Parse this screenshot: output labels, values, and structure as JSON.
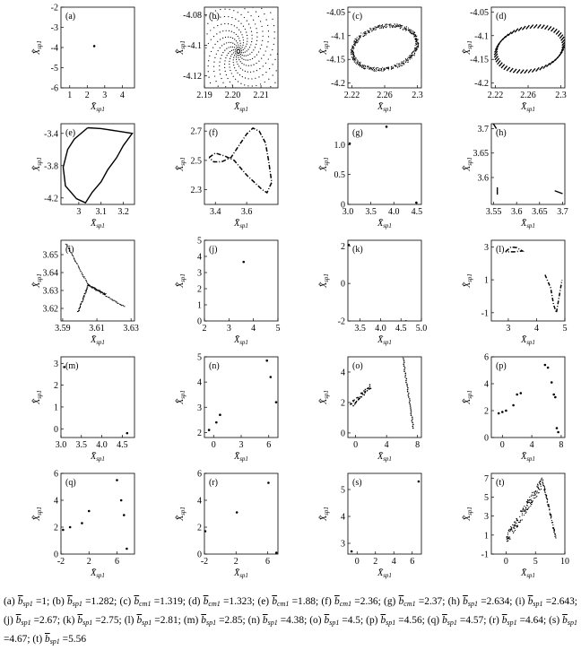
{
  "figure": {
    "x_axis_label": "X̄",
    "x_axis_subscript": "sp1",
    "y_axis_label": "X̄̇",
    "y_axis_subscript": "sp1"
  },
  "chart_data": [
    {
      "id": "a",
      "type": "scatter",
      "label": "(a)",
      "xlim": [
        0.5,
        4.7
      ],
      "ylim": [
        -6,
        -2
      ],
      "xticks": [
        1,
        2,
        3,
        4
      ],
      "yticks": [
        -6,
        -5,
        -4,
        -3,
        -2
      ],
      "shape": "points",
      "points": [
        [
          2.4,
          -3.93
        ]
      ]
    },
    {
      "id": "b",
      "type": "scatter",
      "label": "(b)",
      "xlim": [
        2.19,
        2.216
      ],
      "ylim": [
        -4.128,
        -4.075
      ],
      "xticks": [
        2.19,
        2.2,
        2.21
      ],
      "xtick_labels": [
        "2.19",
        "2.20",
        "2.21"
      ],
      "yticks": [
        -4.12,
        -4.1,
        -4.08
      ],
      "shape": "spiral",
      "center": [
        2.202,
        -4.104
      ]
    },
    {
      "id": "c",
      "type": "scatter",
      "label": "(c)",
      "xlim": [
        2.215,
        2.305
      ],
      "ylim": [
        -4.21,
        -4.04
      ],
      "xticks": [
        2.22,
        2.26,
        2.3
      ],
      "yticks": [
        -4.2,
        -4.15,
        -4.1,
        -4.05
      ],
      "shape": "dense-loop",
      "center": [
        2.26,
        -4.125
      ],
      "radius": [
        0.04,
        0.07
      ],
      "tilt": 0.4
    },
    {
      "id": "d",
      "type": "scatter",
      "label": "(d)",
      "xlim": [
        2.215,
        2.305
      ],
      "ylim": [
        -4.21,
        -4.04
      ],
      "xticks": [
        2.22,
        2.26,
        2.3
      ],
      "yticks": [
        -4.2,
        -4.15,
        -4.1,
        -4.05
      ],
      "shape": "loop",
      "center": [
        2.262,
        -4.128
      ],
      "radius": [
        0.042,
        0.072
      ],
      "tilt": 0.4
    },
    {
      "id": "e",
      "type": "line",
      "label": "(e)",
      "xlim": [
        2.92,
        3.25
      ],
      "ylim": [
        -4.28,
        -3.28
      ],
      "xticks": [
        3,
        3.1,
        3.2
      ],
      "yticks": [
        -4.2,
        -3.8,
        -3.4
      ],
      "shape": "path",
      "points": [
        [
          3.04,
          -3.33
        ],
        [
          3.1,
          -3.34
        ],
        [
          3.17,
          -3.37
        ],
        [
          3.24,
          -3.4
        ],
        [
          3.2,
          -3.55
        ],
        [
          3.17,
          -3.7
        ],
        [
          3.13,
          -3.85
        ],
        [
          3.1,
          -4
        ],
        [
          3.06,
          -4.13
        ],
        [
          3.03,
          -4.26
        ],
        [
          2.99,
          -4.21
        ],
        [
          2.94,
          -4.05
        ],
        [
          2.93,
          -3.82
        ],
        [
          2.95,
          -3.6
        ],
        [
          2.98,
          -3.47
        ],
        [
          3.04,
          -3.33
        ]
      ]
    },
    {
      "id": "f",
      "type": "line",
      "label": "(f)",
      "xlim": [
        3.33,
        3.8
      ],
      "ylim": [
        2.2,
        2.75
      ],
      "xticks": [
        3.4,
        3.6
      ],
      "yticks": [
        2.3,
        2.5,
        2.7
      ],
      "shape": "dashed-path",
      "points": [
        [
          3.36,
          2.52
        ],
        [
          3.4,
          2.55
        ],
        [
          3.46,
          2.53
        ],
        [
          3.52,
          2.5
        ],
        [
          3.56,
          2.45
        ],
        [
          3.6,
          2.4
        ],
        [
          3.65,
          2.35
        ],
        [
          3.7,
          2.3
        ],
        [
          3.73,
          2.28
        ],
        [
          3.76,
          2.35
        ],
        [
          3.74,
          2.5
        ],
        [
          3.72,
          2.62
        ],
        [
          3.68,
          2.7
        ],
        [
          3.64,
          2.72
        ],
        [
          3.6,
          2.68
        ],
        [
          3.55,
          2.6
        ],
        [
          3.5,
          2.52
        ],
        [
          3.44,
          2.49
        ],
        [
          3.39,
          2.49
        ],
        [
          3.36,
          2.52
        ]
      ]
    },
    {
      "id": "g",
      "type": "scatter",
      "label": "(g)",
      "xlim": [
        3,
        4.6
      ],
      "ylim": [
        0,
        1.35
      ],
      "xticks": [
        3,
        3.5,
        4,
        4.5
      ],
      "xtick_labels": [
        "3.0",
        "3.5",
        "4.0",
        "4.5"
      ],
      "yticks": [
        0,
        0.5,
        1
      ],
      "ytick_labels": [
        "0",
        "0.5",
        "1.0"
      ],
      "shape": "points",
      "points": [
        [
          3.84,
          1.3
        ],
        [
          3.04,
          1.02
        ],
        [
          4.49,
          0.03
        ]
      ]
    },
    {
      "id": "h",
      "type": "line",
      "label": "(h)",
      "xlim": [
        3.545,
        3.705
      ],
      "ylim": [
        3.545,
        3.71
      ],
      "xticks": [
        3.55,
        3.6,
        3.65,
        3.7
      ],
      "yticks": [
        3.6,
        3.65,
        3.7
      ],
      "shape": "segments",
      "segments": [
        [
          [
            3.548,
            3.712
          ],
          [
            3.556,
            3.7
          ]
        ],
        [
          [
            3.558,
            3.58
          ],
          [
            3.558,
            3.565
          ]
        ],
        [
          [
            3.683,
            3.573
          ],
          [
            3.7,
            3.567
          ]
        ]
      ]
    },
    {
      "id": "i",
      "type": "scatter",
      "label": "(i)",
      "xlim": [
        3.589,
        3.632
      ],
      "ylim": [
        3.613,
        3.658
      ],
      "xticks": [
        3.59,
        3.61,
        3.63
      ],
      "yticks": [
        3.62,
        3.63,
        3.64,
        3.65
      ],
      "shape": "junction",
      "center": [
        3.605,
        3.633
      ],
      "arms": [
        [
          3.592,
          3.656
        ],
        [
          3.599,
          3.618
        ],
        [
          3.626,
          3.621
        ],
        [
          3.615,
          3.628
        ]
      ]
    },
    {
      "id": "j",
      "type": "scatter",
      "label": "(j)",
      "xlim": [
        2,
        5
      ],
      "ylim": [
        0,
        5
      ],
      "xticks": [
        2,
        3,
        4,
        5
      ],
      "yticks": [
        0,
        1,
        2,
        3,
        4,
        5
      ],
      "shape": "points",
      "points": [
        [
          3.6,
          3.66
        ]
      ]
    },
    {
      "id": "k",
      "type": "scatter",
      "label": "(k)",
      "xlim": [
        3.2,
        5
      ],
      "ylim": [
        -2,
        2.3
      ],
      "xticks": [
        3.5,
        4,
        4.5,
        5
      ],
      "xtick_labels": [
        "3.5",
        "4.0",
        "4.5",
        "5.0"
      ],
      "yticks": [
        -2,
        0,
        2
      ],
      "shape": "points",
      "points": [
        [
          3.22,
          2.05
        ],
        [
          4.62,
          -2.02
        ]
      ]
    },
    {
      "id": "l",
      "type": "scatter",
      "label": "(l)",
      "xlim": [
        2.4,
        5
      ],
      "ylim": [
        -1.5,
        3.4
      ],
      "xticks": [
        3,
        4,
        5
      ],
      "yticks": [
        -1,
        1,
        3
      ],
      "shape": "dashed-path",
      "points": [
        [
          2.9,
          2.7
        ],
        [
          3.1,
          3
        ],
        [
          3.3,
          2.95
        ],
        [
          3.5,
          2.75
        ],
        [
          3.2,
          2.7
        ],
        [
          2.9,
          2.7
        ]
      ],
      "points2": [
        [
          4.3,
          1.3
        ],
        [
          4.5,
          0.5
        ],
        [
          4.6,
          -0.5
        ],
        [
          4.7,
          -1
        ],
        [
          4.8,
          0
        ],
        [
          4.9,
          1
        ]
      ]
    },
    {
      "id": "m",
      "type": "scatter",
      "label": "(m)",
      "xlim": [
        3,
        4.8
      ],
      "ylim": [
        -0.4,
        3.3
      ],
      "xticks": [
        3,
        3.5,
        4,
        4.5
      ],
      "xtick_labels": [
        "3.0",
        "3.5",
        "4.0",
        "4.5"
      ],
      "yticks": [
        0,
        1,
        2,
        3
      ],
      "shape": "points",
      "points": [
        [
          3.08,
          2.83
        ],
        [
          4.62,
          -0.2
        ]
      ]
    },
    {
      "id": "n",
      "type": "scatter",
      "label": "(n)",
      "xlim": [
        -1,
        7
      ],
      "ylim": [
        1.8,
        5
      ],
      "xticks": [
        0,
        3,
        6
      ],
      "yticks": [
        2,
        3,
        4,
        5
      ],
      "shape": "points",
      "points": [
        [
          -0.5,
          2.1
        ],
        [
          0.3,
          2.4
        ],
        [
          0.7,
          2.7
        ],
        [
          5.8,
          4.85
        ],
        [
          6.2,
          4.2
        ],
        [
          6.8,
          3.2
        ]
      ]
    },
    {
      "id": "o",
      "type": "scatter",
      "label": "(o)",
      "xlim": [
        -1,
        8.5
      ],
      "ylim": [
        -0.3,
        5
      ],
      "xticks": [
        0,
        4,
        8
      ],
      "yticks": [
        0,
        2,
        4
      ],
      "shape": "bands",
      "points": [
        [
          -0.6,
          1.8
        ],
        [
          2,
          3.1
        ]
      ],
      "points2": [
        [
          6.1,
          5
        ],
        [
          7.5,
          0.2
        ]
      ]
    },
    {
      "id": "p",
      "type": "scatter",
      "label": "(p)",
      "xlim": [
        -1.5,
        8.5
      ],
      "ylim": [
        0,
        6
      ],
      "xticks": [
        0,
        4,
        8
      ],
      "yticks": [
        0,
        2,
        4,
        6
      ],
      "shape": "points",
      "points": [
        [
          -0.5,
          1.8
        ],
        [
          0,
          1.9
        ],
        [
          0.5,
          2
        ],
        [
          1.5,
          2.4
        ],
        [
          2,
          3.2
        ],
        [
          2.5,
          3.3
        ],
        [
          5.8,
          5.4
        ],
        [
          6.2,
          5.2
        ],
        [
          6.7,
          4.1
        ],
        [
          7,
          3.2
        ],
        [
          7.2,
          3
        ],
        [
          7.4,
          0.7
        ],
        [
          7.6,
          0.4
        ]
      ]
    },
    {
      "id": "q",
      "type": "scatter",
      "label": "(q)",
      "xlim": [
        -2,
        8.5
      ],
      "ylim": [
        0,
        6
      ],
      "xticks": [
        -2,
        2,
        6
      ],
      "yticks": [
        0,
        2,
        4,
        6
      ],
      "shape": "points",
      "points": [
        [
          -1.7,
          1.8
        ],
        [
          -0.7,
          2
        ],
        [
          1,
          2.3
        ],
        [
          2,
          3.2
        ],
        [
          6,
          5.5
        ],
        [
          6.6,
          4
        ],
        [
          7,
          2.9
        ],
        [
          7.4,
          0.4
        ]
      ]
    },
    {
      "id": "r",
      "type": "scatter",
      "label": "(r)",
      "xlim": [
        -2,
        7.3
      ],
      "ylim": [
        0,
        6
      ],
      "xticks": [
        -2,
        2,
        6
      ],
      "yticks": [
        0,
        2,
        4,
        6
      ],
      "shape": "points",
      "points": [
        [
          -1.9,
          1.7
        ],
        [
          2.1,
          3.1
        ],
        [
          6.1,
          5.3
        ],
        [
          7.1,
          0.1
        ]
      ]
    },
    {
      "id": "s",
      "type": "scatter",
      "label": "(s)",
      "xlim": [
        -1,
        7
      ],
      "ylim": [
        2.6,
        5.6
      ],
      "xticks": [
        0,
        2,
        4,
        6
      ],
      "yticks": [
        3,
        4,
        5
      ],
      "shape": "points",
      "points": [
        [
          6.7,
          5.3
        ],
        [
          -0.6,
          2.7
        ]
      ]
    },
    {
      "id": "t",
      "type": "scatter",
      "label": "(t)",
      "xlim": [
        -2.5,
        10
      ],
      "ylim": [
        -1,
        7.5
      ],
      "xticks": [
        0,
        5,
        10
      ],
      "yticks": [
        -1,
        1,
        3,
        5,
        7
      ],
      "shape": "triangle-band"
    }
  ],
  "caption": {
    "items": [
      {
        "label": "(a)",
        "var": "b",
        "sub": "sp1",
        "value": "=1;"
      },
      {
        "label": "(b)",
        "var": "b",
        "sub": "sp1",
        "value": "=1.282;"
      },
      {
        "label": "(c)",
        "var": "b",
        "sub": "cm1",
        "value": "=1.319;"
      },
      {
        "label": "(d)",
        "var": "b",
        "sub": "cm1",
        "value": "=1.323;"
      },
      {
        "label": "(e)",
        "var": "b",
        "sub": "cm1",
        "value": "=1.88;"
      },
      {
        "label": "(f)",
        "var": "b",
        "sub": "cm1",
        "value": "=2.36;"
      },
      {
        "label": "(g)",
        "var": "b",
        "sub": "cm1",
        "value": "=2.37;"
      },
      {
        "label": "(h)",
        "var": "b",
        "sub": "sp1",
        "value": "=2.634;"
      },
      {
        "label": "(i)",
        "var": "b",
        "sub": "sp1",
        "value": "=2.643;"
      },
      {
        "label": "(j)",
        "var": "b",
        "sub": "sp1",
        "value": "=2.67;"
      },
      {
        "label": "(k)",
        "var": "b",
        "sub": "sp1",
        "value": "=2.75;"
      },
      {
        "label": "(l)",
        "var": "b",
        "sub": "sp1",
        "value": "=2.81;"
      },
      {
        "label": "(m)",
        "var": "b",
        "sub": "sp1",
        "value": "=2.85;"
      },
      {
        "label": "(n)",
        "var": "b",
        "sub": "sp1",
        "value": "=4.38;"
      },
      {
        "label": "(o)",
        "var": "b",
        "sub": "sp1",
        "value": "=4.5;"
      },
      {
        "label": "(p)",
        "var": "b",
        "sub": "sp1",
        "value": "=4.56;"
      },
      {
        "label": "(q)",
        "var": "b",
        "sub": "sp1",
        "value": "=4.57;"
      },
      {
        "label": "(r)",
        "var": "b",
        "sub": "sp1",
        "value": "=4.64;"
      },
      {
        "label": "(s)",
        "var": "b",
        "sub": "sp1",
        "value": "=4.67;"
      },
      {
        "label": "(t)",
        "var": "b",
        "sub": "sp1",
        "value": "=5.56"
      }
    ]
  }
}
